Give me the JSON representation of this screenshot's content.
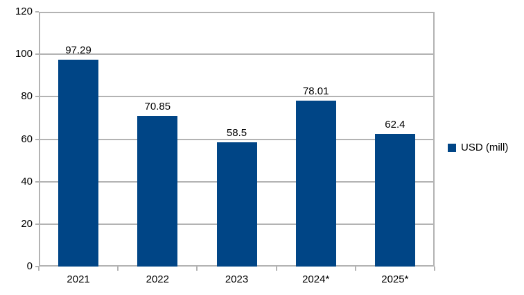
{
  "chart_data": {
    "type": "bar",
    "title": "",
    "xlabel": "",
    "ylabel": "",
    "categories": [
      "2021",
      "2022",
      "2023",
      "2024*",
      "2025*"
    ],
    "series": [
      {
        "name": "USD (mill)",
        "values": [
          97.29,
          70.85,
          58.5,
          78.01,
          62.4
        ]
      }
    ],
    "data_labels": [
      "97.29",
      "70.85",
      "58.5",
      "78.01",
      "62.4"
    ],
    "ylim": [
      0,
      120
    ],
    "y_ticks": [
      0,
      20,
      40,
      60,
      80,
      100,
      120
    ],
    "grid": true,
    "legend_position": "right",
    "colors": {
      "bar": "#004586",
      "grid": "#b3b3b3",
      "axis": "#b3b3b3",
      "text": "#000000",
      "background": "#ffffff"
    }
  },
  "legend": {
    "label": "USD (mill)"
  }
}
